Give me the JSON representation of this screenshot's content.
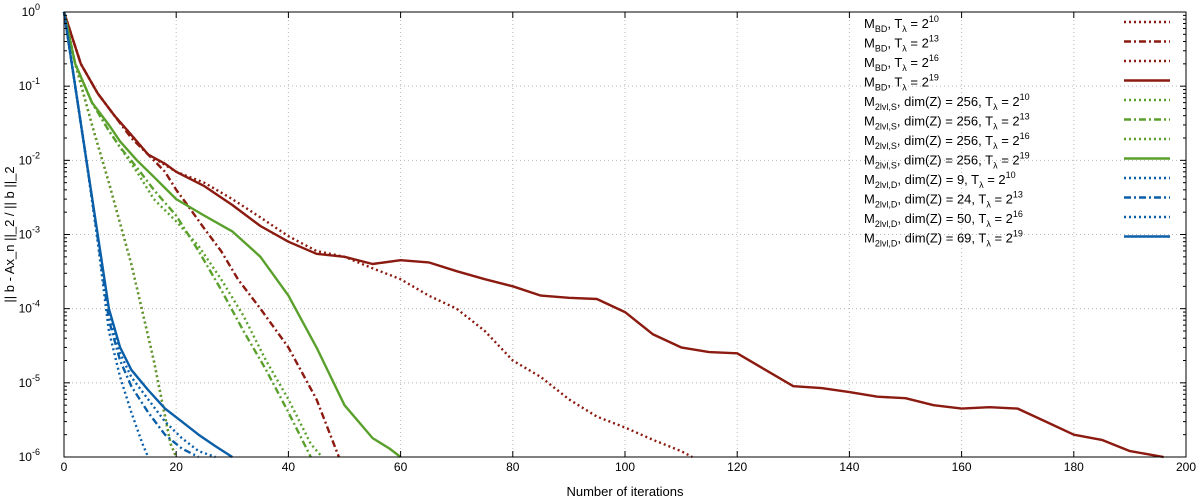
{
  "chart_data": {
    "type": "line",
    "xlabel": "Number of iterations",
    "ylabel": "|| b - Ax_n ||_2 / || b ||_2",
    "xlim": [
      0,
      200
    ],
    "ylim": [
      1e-06,
      1
    ],
    "yscale": "log",
    "grid": true,
    "legend_position": "top-right",
    "x_ticks": [
      "0",
      "20",
      "40",
      "60",
      "80",
      "100",
      "120",
      "140",
      "160",
      "180",
      "200"
    ],
    "y_ticks": [
      {
        "base": "10",
        "exp": "0"
      },
      {
        "base": "10",
        "exp": "-1"
      },
      {
        "base": "10",
        "exp": "-2"
      },
      {
        "base": "10",
        "exp": "-3"
      },
      {
        "base": "10",
        "exp": "-4"
      },
      {
        "base": "10",
        "exp": "-5"
      },
      {
        "base": "10",
        "exp": "-6"
      }
    ],
    "colors": {
      "red": "#8b1a10",
      "green": "#5aa02c",
      "blue": "#0a5fa8"
    },
    "series": [
      {
        "name": "M_BD, T_λ = 2^10",
        "label": {
          "main": "M",
          "sub": "BD",
          "mid": ", T",
          "sub2": "λ",
          "eq": " = 2",
          "sup": "10"
        },
        "color": "#8b1a10",
        "dash": "dotted",
        "x": [
          0,
          2,
          5,
          8,
          12,
          16,
          19,
          20
        ],
        "y": [
          1,
          0.2,
          0.03,
          0.005,
          0.0004,
          2e-05,
          1.5e-06,
          1e-06
        ]
      },
      {
        "name": "M_BD, T_λ = 2^13",
        "label": {
          "main": "M",
          "sub": "BD",
          "mid": ", T",
          "sub2": "λ",
          "eq": " = 2",
          "sup": "13"
        },
        "color": "#8b1a10",
        "dash": "dashdot",
        "x": [
          0,
          3,
          6,
          9,
          12,
          15,
          18,
          20,
          22,
          25,
          28,
          31,
          35,
          40,
          45,
          49
        ],
        "y": [
          1,
          0.2,
          0.08,
          0.04,
          0.02,
          0.012,
          0.007,
          0.004,
          0.0025,
          0.0012,
          0.0006,
          0.00025,
          0.0001,
          3e-05,
          6e-06,
          1e-06
        ]
      },
      {
        "name": "M_BD, T_λ = 2^16",
        "label": {
          "main": "M",
          "sub": "BD",
          "mid": ", T",
          "sub2": "λ",
          "eq": " = 2",
          "sup": "16"
        },
        "color": "#8b1a10",
        "dash": "dotted",
        "x": [
          0,
          3,
          6,
          9,
          12,
          15,
          20,
          25,
          30,
          35,
          40,
          45,
          50,
          55,
          60,
          65,
          70,
          75,
          80,
          85,
          90,
          95,
          100,
          105,
          110,
          112
        ],
        "y": [
          1,
          0.2,
          0.08,
          0.04,
          0.022,
          0.012,
          0.007,
          0.005,
          0.003,
          0.0017,
          0.00095,
          0.0006,
          0.0005,
          0.00035,
          0.00025,
          0.00015,
          0.0001,
          5e-05,
          2e-05,
          1.2e-05,
          6e-06,
          3.5e-06,
          2.5e-06,
          1.7e-06,
          1.2e-06,
          1e-06
        ]
      },
      {
        "name": "M_BD, T_λ = 2^19",
        "label": {
          "main": "M",
          "sub": "BD",
          "mid": ", T",
          "sub2": "λ",
          "eq": " = 2",
          "sup": "19"
        },
        "color": "#8b1a10",
        "dash": "solid",
        "x": [
          0,
          3,
          6,
          9,
          12,
          15,
          18,
          20,
          25,
          30,
          35,
          40,
          45,
          50,
          55,
          60,
          65,
          70,
          75,
          80,
          85,
          90,
          95,
          100,
          105,
          110,
          115,
          120,
          125,
          130,
          135,
          140,
          145,
          150,
          155,
          160,
          165,
          170,
          175,
          180,
          185,
          190,
          196
        ],
        "y": [
          1,
          0.2,
          0.08,
          0.04,
          0.022,
          0.012,
          0.009,
          0.007,
          0.0045,
          0.0025,
          0.0013,
          0.0008,
          0.00055,
          0.0005,
          0.0004,
          0.00045,
          0.00042,
          0.00032,
          0.00025,
          0.0002,
          0.00015,
          0.00014,
          0.000135,
          9e-05,
          4.5e-05,
          3e-05,
          2.6e-05,
          2.5e-05,
          1.5e-05,
          9e-06,
          8.5e-06,
          7.5e-06,
          6.5e-06,
          6.2e-06,
          5e-06,
          4.5e-06,
          4.7e-06,
          4.5e-06,
          3e-06,
          2e-06,
          1.7e-06,
          1.2e-06,
          1e-06
        ]
      },
      {
        "name": "M_2lvl,S, dim(Z) = 256, T_λ = 2^10",
        "label": {
          "main": "M",
          "sub": "2lvl,S",
          "mid": ", dim(Z) = 256, T",
          "sub2": "λ",
          "eq": " = 2",
          "sup": "10"
        },
        "color": "#5aa02c",
        "dash": "dotted",
        "x": [
          0,
          2,
          5,
          8,
          12,
          16,
          19,
          20
        ],
        "y": [
          1,
          0.2,
          0.03,
          0.005,
          0.0004,
          2e-05,
          1.5e-06,
          1e-06
        ]
      },
      {
        "name": "M_2lvl,S, dim(Z) = 256, T_λ = 2^13",
        "label": {
          "main": "M",
          "sub": "2lvl,S",
          "mid": ", dim(Z) = 256, T",
          "sub2": "λ",
          "eq": " = 2",
          "sup": "13"
        },
        "color": "#5aa02c",
        "dash": "dashdot",
        "x": [
          0,
          2,
          5,
          8,
          10,
          13,
          16,
          20,
          24,
          28,
          32,
          36,
          40,
          44
        ],
        "y": [
          1,
          0.2,
          0.06,
          0.025,
          0.015,
          0.008,
          0.004,
          0.0018,
          0.0006,
          0.00018,
          5e-05,
          1.5e-05,
          4e-06,
          1e-06
        ]
      },
      {
        "name": "M_2lvl,S, dim(Z) = 256, T_λ = 2^16",
        "label": {
          "main": "M",
          "sub": "2lvl,S",
          "mid": ", dim(Z) = 256, T",
          "sub2": "λ",
          "eq": " = 2",
          "sup": "16"
        },
        "color": "#5aa02c",
        "dash": "dotted",
        "x": [
          0,
          2,
          5,
          8,
          10,
          13,
          16,
          20,
          24,
          28,
          32,
          36,
          40,
          44,
          46
        ],
        "y": [
          1,
          0.2,
          0.06,
          0.025,
          0.015,
          0.007,
          0.003,
          0.0015,
          0.0007,
          0.00025,
          8e-05,
          2e-05,
          6e-06,
          1.5e-06,
          1e-06
        ]
      },
      {
        "name": "M_2lvl,S, dim(Z) = 256, T_λ = 2^19",
        "label": {
          "main": "M",
          "sub": "2lvl,S",
          "mid": ", dim(Z) = 256, T",
          "sub2": "λ",
          "eq": " = 2",
          "sup": "19"
        },
        "color": "#5aa02c",
        "dash": "solid",
        "x": [
          0,
          2,
          5,
          8,
          10,
          13,
          16,
          20,
          25,
          30,
          35,
          40,
          45,
          50,
          55,
          58,
          60
        ],
        "y": [
          1,
          0.2,
          0.06,
          0.03,
          0.018,
          0.01,
          0.006,
          0.003,
          0.0018,
          0.0011,
          0.0005,
          0.00015,
          3e-05,
          5e-06,
          1.8e-06,
          1.3e-06,
          1e-06
        ]
      },
      {
        "name": "M_2lvl,D, dim(Z) = 9, T_λ = 2^10",
        "label": {
          "main": "M",
          "sub": "2lvl,D",
          "mid": ", dim(Z) =   9, T",
          "sub2": "λ",
          "eq": " = 2",
          "sup": "10"
        },
        "color": "#0a5fa8",
        "dash": "dotted",
        "x": [
          0,
          2,
          4,
          6,
          8,
          10,
          12,
          14,
          15
        ],
        "y": [
          1,
          0.1,
          0.01,
          0.0008,
          5e-05,
          1.2e-05,
          4e-06,
          1.5e-06,
          1e-06
        ]
      },
      {
        "name": "M_2lvl,D, dim(Z) = 24, T_λ = 2^13",
        "label": {
          "main": "M",
          "sub": "2lvl,D",
          "mid": ", dim(Z) =  24, T",
          "sub2": "λ",
          "eq": " = 2",
          "sup": "13"
        },
        "color": "#0a5fa8",
        "dash": "dashdot",
        "x": [
          0,
          2,
          4,
          6,
          8,
          10,
          12,
          15,
          18,
          21,
          24
        ],
        "y": [
          1,
          0.1,
          0.01,
          0.0009,
          7e-05,
          2e-05,
          9e-06,
          4e-06,
          2e-06,
          1.3e-06,
          1e-06
        ]
      },
      {
        "name": "M_2lvl,D, dim(Z) = 50, T_λ = 2^16",
        "label": {
          "main": "M",
          "sub": "2lvl,D",
          "mid": ", dim(Z) =  50, T",
          "sub2": "λ",
          "eq": " = 2",
          "sup": "16"
        },
        "color": "#0a5fa8",
        "dash": "dotted",
        "x": [
          0,
          2,
          4,
          6,
          8,
          10,
          12,
          15,
          18,
          21,
          24,
          27
        ],
        "y": [
          1,
          0.1,
          0.01,
          0.0009,
          8e-05,
          2.5e-05,
          1.2e-05,
          6e-06,
          3e-06,
          1.8e-06,
          1.2e-06,
          1e-06
        ]
      },
      {
        "name": "M_2lvl,D, dim(Z) = 69, T_λ = 2^19",
        "label": {
          "main": "M",
          "sub": "2lvl,D",
          "mid": ", dim(Z) =  69, T",
          "sub2": "λ",
          "eq": " = 2",
          "sup": "19"
        },
        "color": "#0a5fa8",
        "dash": "solid",
        "x": [
          0,
          2,
          4,
          6,
          8,
          10,
          12,
          15,
          18,
          21,
          24,
          27,
          30
        ],
        "y": [
          1,
          0.1,
          0.01,
          0.001,
          0.0001,
          3e-05,
          1.5e-05,
          8e-06,
          4.5e-06,
          3e-06,
          2e-06,
          1.4e-06,
          1e-06
        ]
      }
    ]
  }
}
